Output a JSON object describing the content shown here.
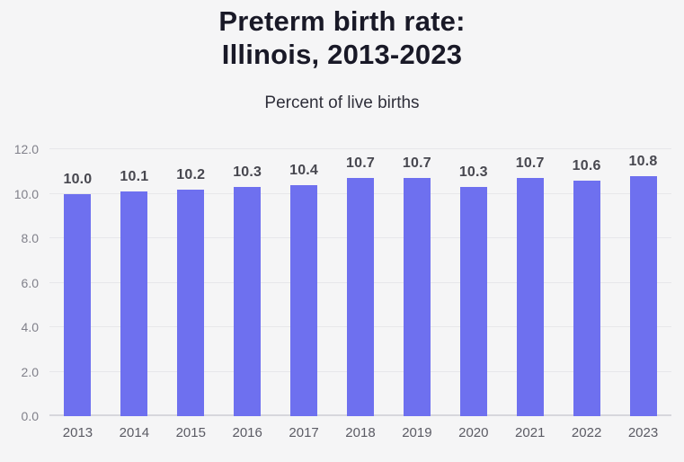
{
  "header": {
    "title": "Preterm birth rate:\nIllinois, 2013-2023",
    "subtitle": "Percent of live births"
  },
  "chart_data": {
    "type": "bar",
    "title": "Preterm birth rate: Illinois, 2013-2023",
    "subtitle": "Percent of live births",
    "categories": [
      "2013",
      "2014",
      "2015",
      "2016",
      "2017",
      "2018",
      "2019",
      "2020",
      "2021",
      "2022",
      "2023"
    ],
    "values": [
      10.0,
      10.1,
      10.2,
      10.3,
      10.4,
      10.7,
      10.7,
      10.3,
      10.7,
      10.6,
      10.8
    ],
    "value_labels": [
      "10.0",
      "10.1",
      "10.2",
      "10.3",
      "10.4",
      "10.7",
      "10.7",
      "10.3",
      "10.7",
      "10.6",
      "10.8"
    ],
    "xlabel": "",
    "ylabel": "",
    "ylim": [
      0,
      12
    ],
    "yticks": [
      0,
      2,
      4,
      6,
      8,
      10,
      12
    ],
    "ytick_labels": [
      "0.0",
      "2.0",
      "4.0",
      "6.0",
      "8.0",
      "10.0",
      "12.0"
    ],
    "grid": "horizontal gridlines on",
    "legend": "none",
    "colors": {
      "bar": "#6e70ef",
      "background": "#f5f5f6",
      "gridline": "#e7e7ea",
      "axis_baseline": "#d7d7dc",
      "title_text": "#191927",
      "subtitle_text": "#2f2f3a",
      "ytick_text": "#80808a",
      "xtick_text": "#5b5b64",
      "value_label_text": "#47474f"
    }
  }
}
